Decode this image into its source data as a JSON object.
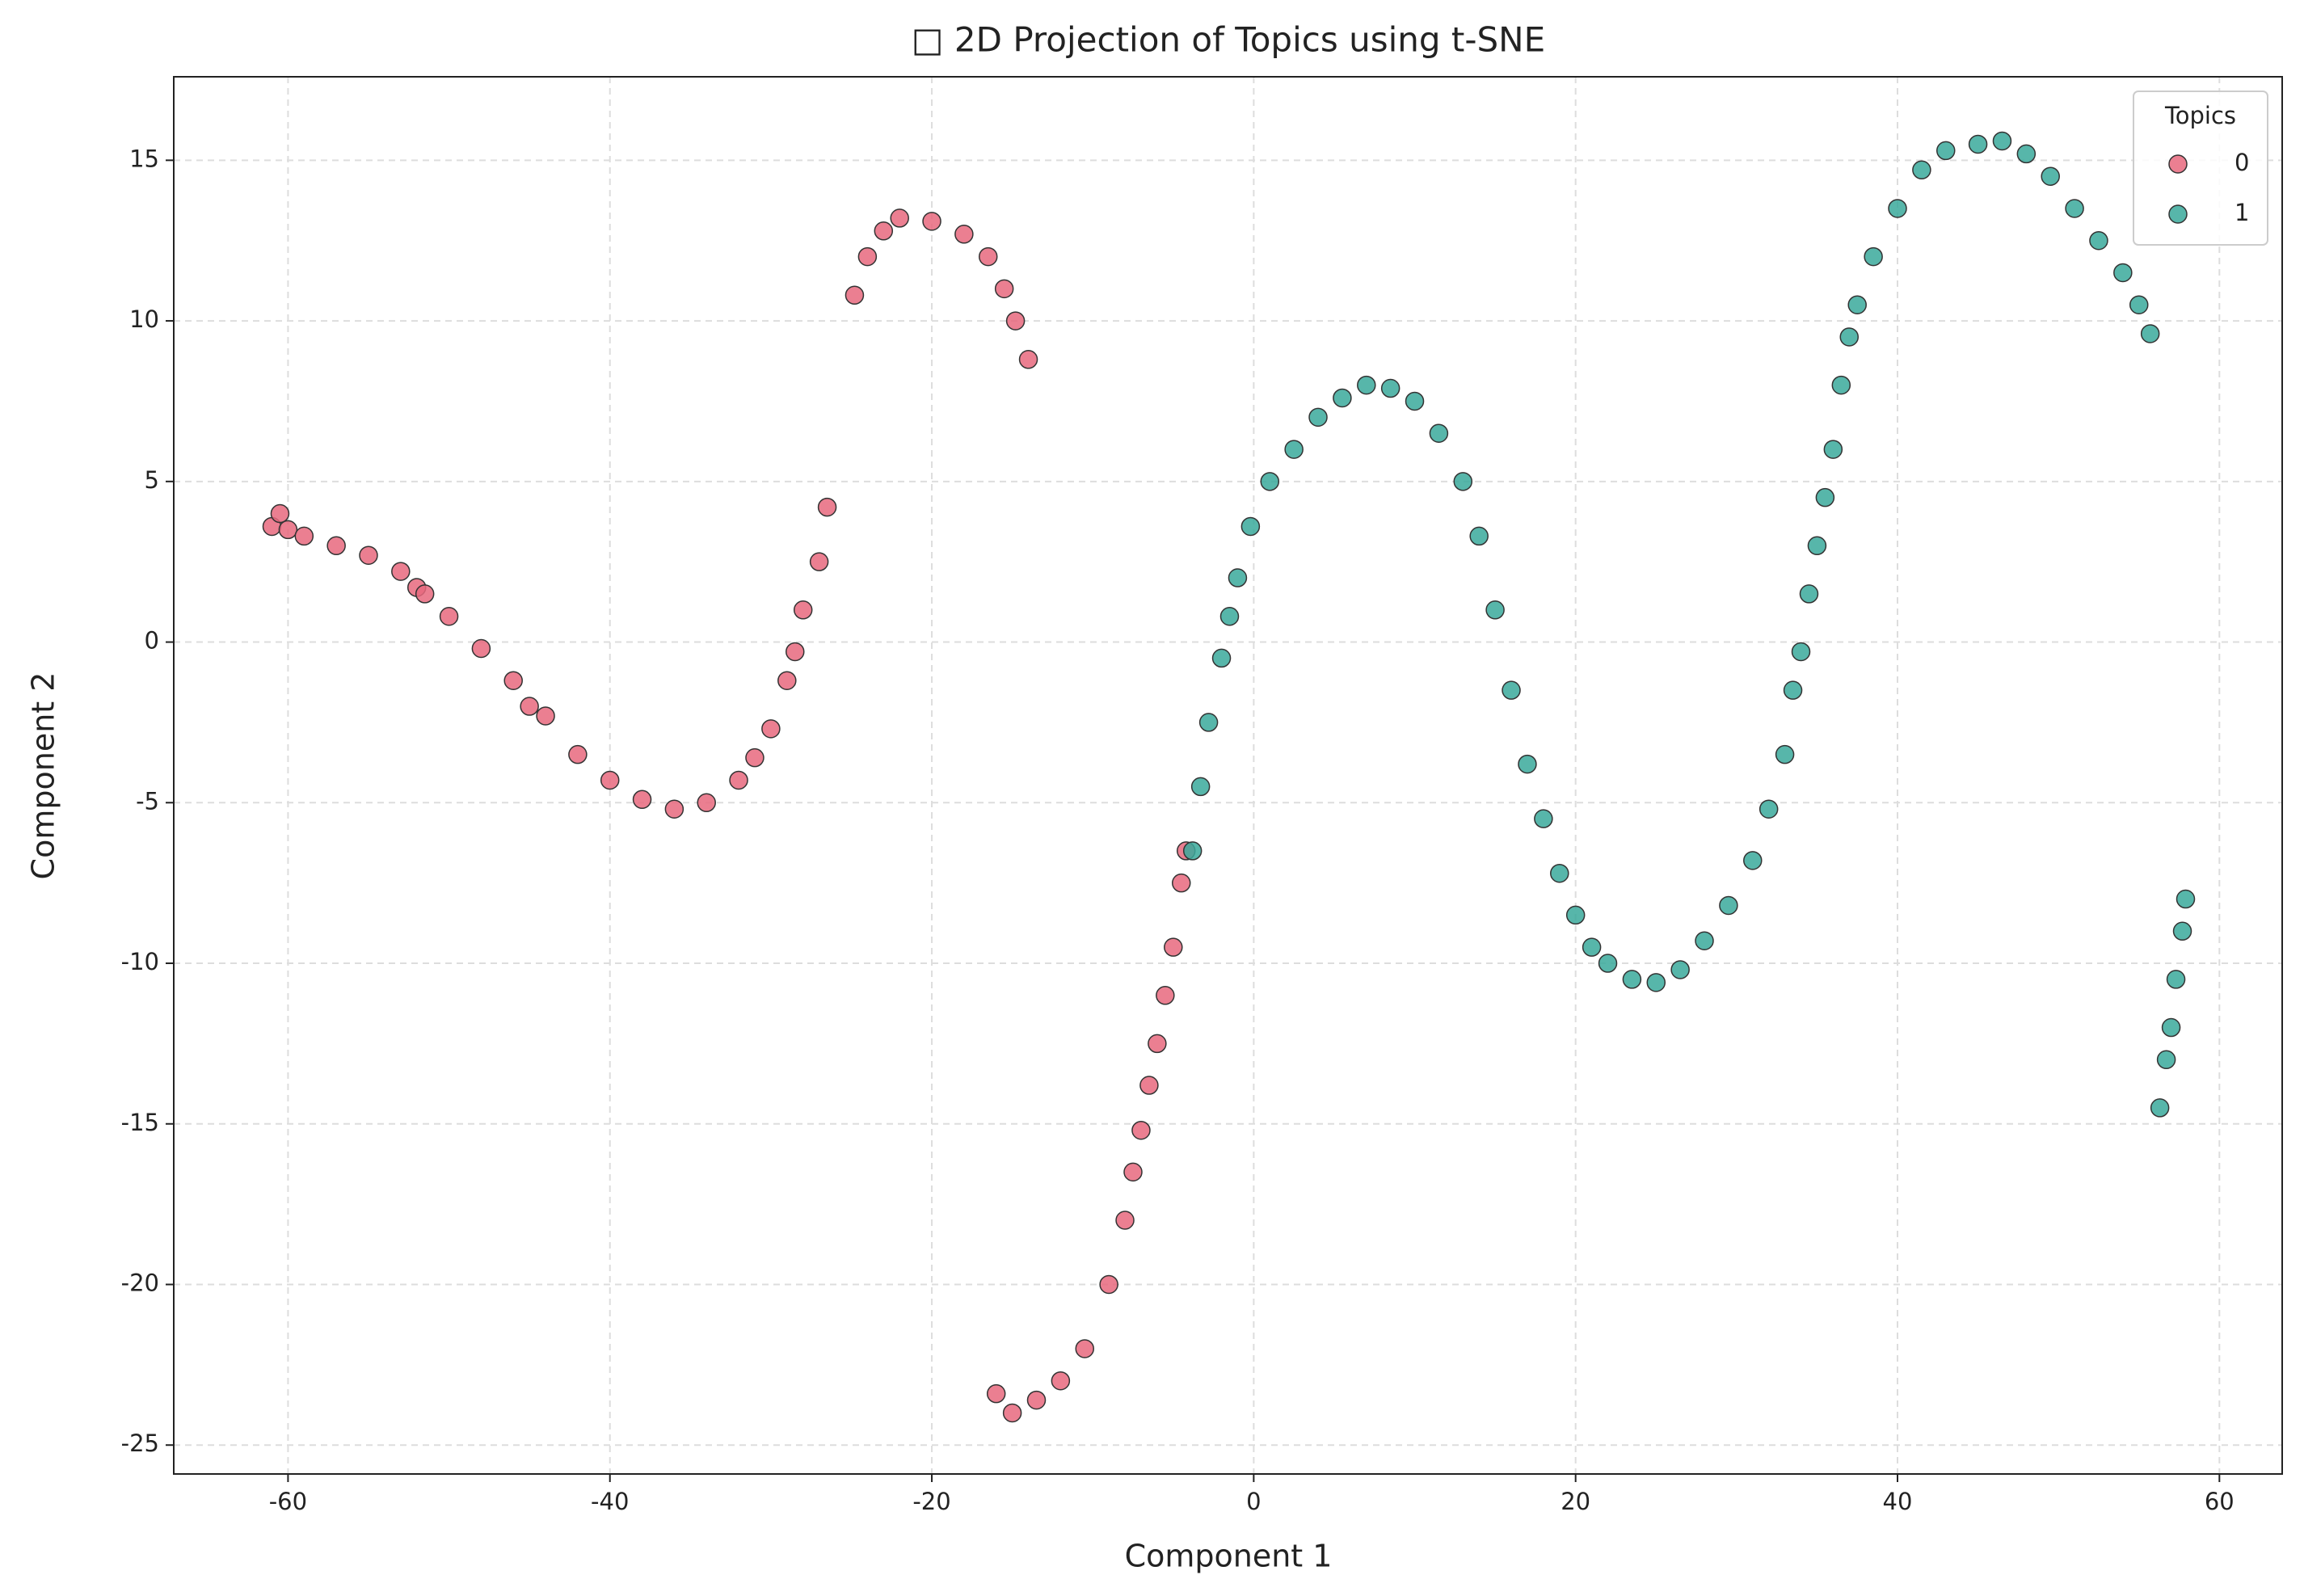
{
  "chart_data": {
    "type": "scatter",
    "title": "□ 2D Projection of Topics using t-SNE",
    "x_label": "Component 1",
    "y_label": "Component 2",
    "legend_title": "Topics",
    "legend": "upper right",
    "grid": true,
    "xlim": [
      -67.1,
      63.9
    ],
    "ylim": [
      -25.9,
      17.6
    ],
    "xticks": [
      -60,
      -40,
      -20,
      0,
      20,
      40,
      60
    ],
    "yticks": [
      -25,
      -20,
      -15,
      -10,
      -5,
      0,
      5,
      10,
      15
    ],
    "series": [
      {
        "name": "0",
        "color": "#e8697e",
        "x": [
          -61,
          -60.5,
          -60,
          -59,
          -57,
          -55,
          -53,
          -52,
          -51.5,
          -50,
          -48,
          -46,
          -45,
          -44,
          -42,
          -40,
          -38,
          -36,
          -34,
          -32,
          -31,
          -30,
          -29,
          -28.5,
          -28,
          -27,
          -26.5,
          -24.8,
          -24,
          -23,
          -22,
          -20,
          -18,
          -16.5,
          -15.5,
          -14.8,
          -14,
          -16,
          -15,
          -13.5,
          -12,
          -10.5,
          -9,
          -8,
          -7.5,
          -7,
          -6.5,
          -6,
          -5.5,
          -5,
          -4.5,
          -4.2
        ],
        "values": [
          3.6,
          4,
          3.5,
          3.3,
          3,
          2.7,
          2.2,
          1.7,
          1.5,
          0.8,
          -0.2,
          -1.2,
          -2,
          -2.3,
          -3.5,
          -4.3,
          -4.9,
          -5.2,
          -5,
          -4.3,
          -3.6,
          -2.7,
          -1.2,
          -0.3,
          1,
          2.5,
          4.2,
          10.8,
          12,
          12.8,
          13.2,
          13.1,
          12.7,
          12,
          11,
          10,
          8.8,
          -23.4,
          -24,
          -23.6,
          -23,
          -22,
          -20,
          -18,
          -16.5,
          -15.2,
          -13.8,
          -12.5,
          -11,
          -9.5,
          -7.5,
          -6.5
        ]
      },
      {
        "name": "1",
        "color": "#3aa99b",
        "x": [
          -3.8,
          -3.3,
          -2.8,
          -2,
          -1.5,
          -1,
          -0.2,
          1,
          2.5,
          4,
          5.5,
          7,
          8.5,
          10,
          11.5,
          13,
          14,
          15,
          16,
          17,
          18,
          19,
          20,
          21,
          22,
          23.5,
          25,
          26.5,
          28,
          29.5,
          31,
          32,
          33,
          33.5,
          34,
          34.5,
          35,
          35.5,
          36,
          36.5,
          37,
          37.5,
          38.5,
          40,
          41.5,
          43,
          45,
          46.5,
          48,
          49.5,
          51,
          52.5,
          54,
          55,
          55.7,
          56.3,
          56.7,
          57,
          57.3,
          57.7,
          57.9
        ],
        "values": [
          -6.5,
          -4.5,
          -2.5,
          -0.5,
          0.8,
          2,
          3.6,
          5,
          6,
          7,
          7.6,
          8,
          7.9,
          7.5,
          6.5,
          5,
          3.3,
          1,
          -1.5,
          -3.8,
          -5.5,
          -7.2,
          -8.5,
          -9.5,
          -10,
          -10.5,
          -10.6,
          -10.2,
          -9.3,
          -8.2,
          -6.8,
          -5.2,
          -3.5,
          -1.5,
          -0.3,
          1.5,
          3,
          4.5,
          6,
          8,
          9.5,
          10.5,
          12,
          13.5,
          14.7,
          15.3,
          15.5,
          15.6,
          15.2,
          14.5,
          13.5,
          12.5,
          11.5,
          10.5,
          9.6,
          -14.5,
          -13,
          -12,
          -10.5,
          -9,
          -8
        ]
      }
    ]
  }
}
